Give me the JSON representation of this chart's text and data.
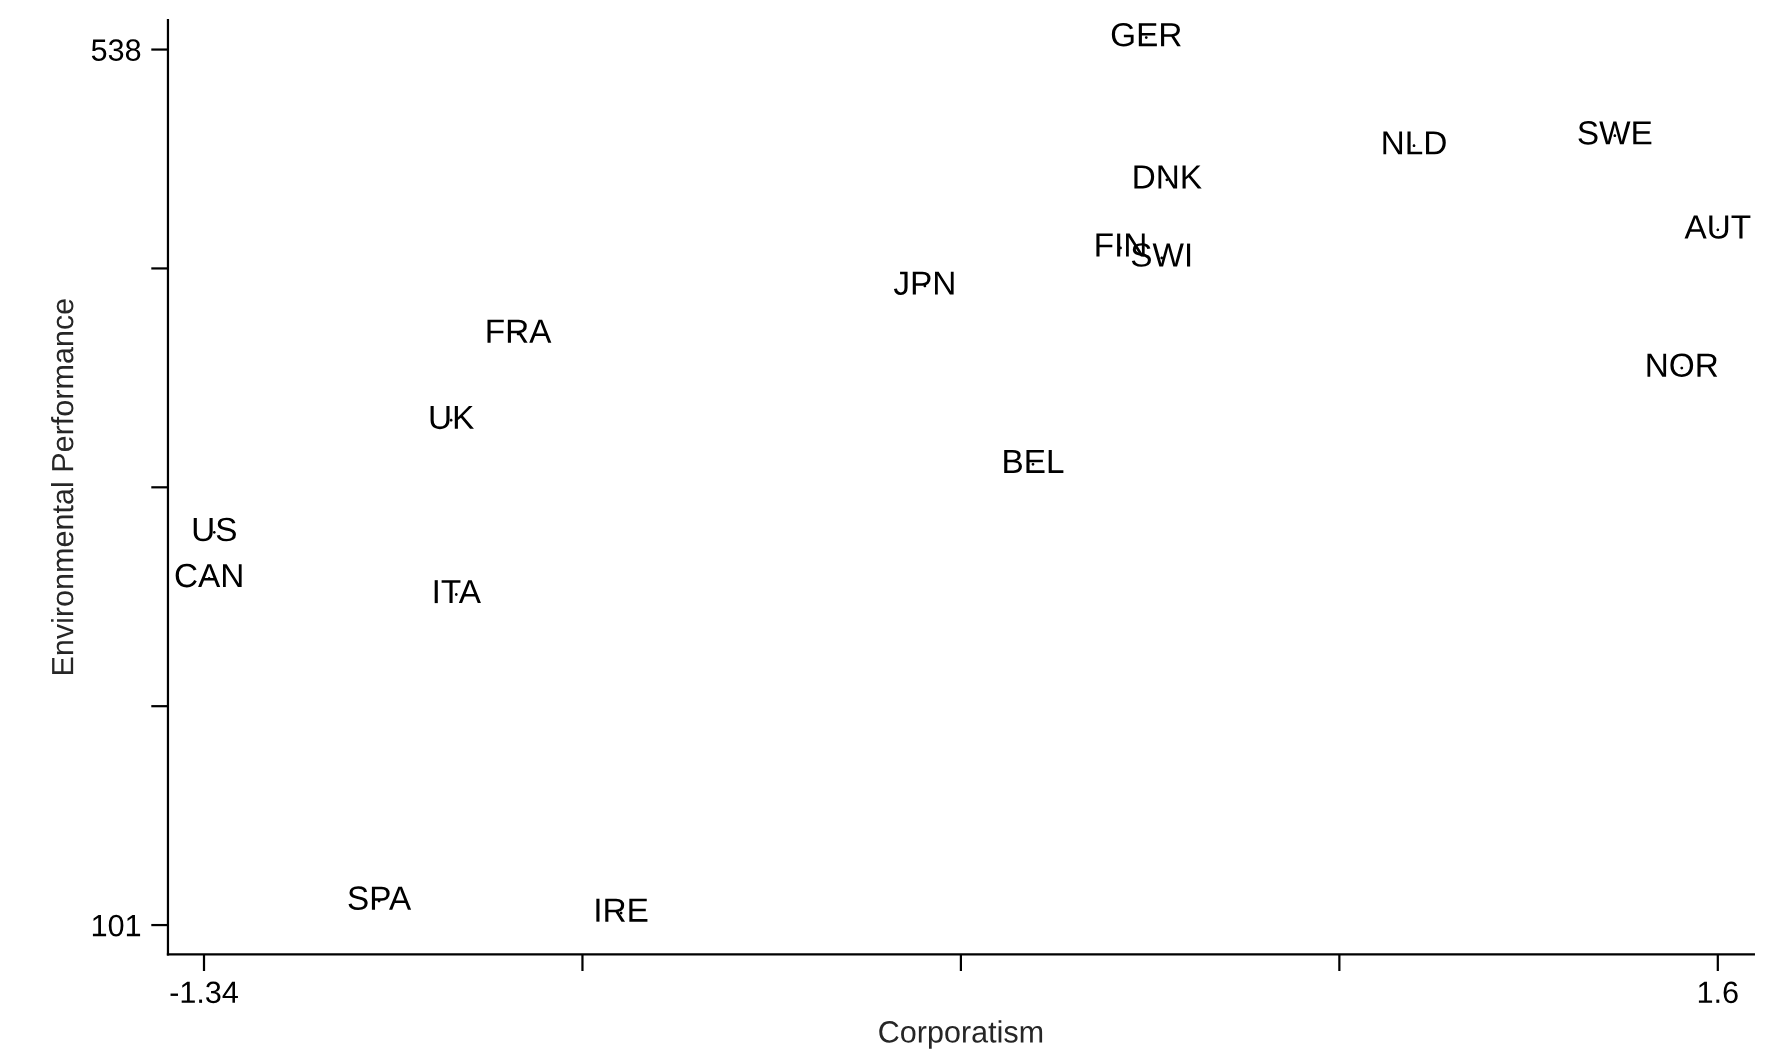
{
  "chart_data": {
    "type": "scatter",
    "xlabel": "Corporatism",
    "ylabel": "Environmental Performance",
    "xlim": [
      -1.41,
      1.67
    ],
    "xticks": [
      -1.34,
      {
        "value": -0.605,
        "label": null
      },
      {
        "value": 0.13,
        "label": null
      },
      {
        "value": 0.865,
        "label": null
      },
      1.6
    ],
    "ylim": [
      86.4,
      552.7
    ],
    "yticks": [
      101,
      {
        "value": 210.25,
        "label": null
      },
      {
        "value": 319.5,
        "label": null
      },
      {
        "value": 428.75,
        "label": null
      },
      538
    ],
    "grid": false,
    "legend": false,
    "marker": "none",
    "series": [
      {
        "color": "#000000",
        "x": [
          -1.32,
          -1.33,
          -0.86,
          -0.73,
          -0.85,
          -1.0,
          -0.53,
          0.49,
          0.53,
          1.01,
          1.4,
          1.6,
          0.44,
          0.52,
          0.06,
          1.53,
          0.27
        ],
        "values": [
          297,
          274,
          353,
          396,
          266,
          113,
          107,
          544,
          473,
          490,
          495,
          448,
          439,
          434,
          420,
          379,
          331
        ],
        "value_labels": [
          "US",
          "CAN",
          "UK",
          "FRA",
          "ITA",
          "SPA",
          "IRE",
          "GER",
          "DNK",
          "NLD",
          "SWE",
          "AUT",
          "FIN",
          "SWI",
          "JPN",
          "NOR",
          "BEL"
        ]
      }
    ]
  }
}
